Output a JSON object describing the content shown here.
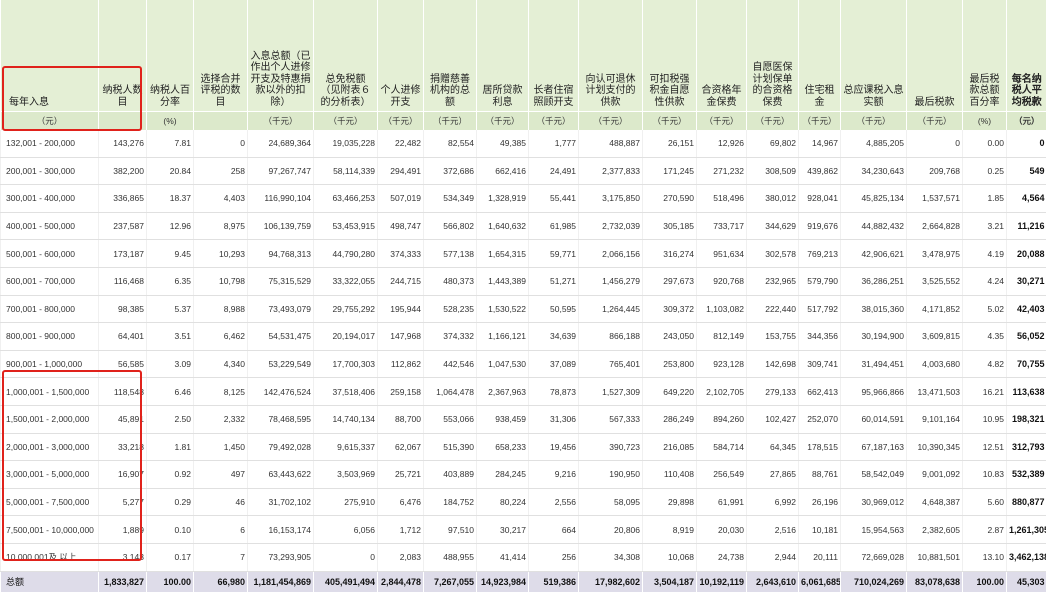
{
  "headers": [
    "每年入息",
    "纳税人数目",
    "纳税人百分率",
    "选择合并评税的数目",
    "入息总额（已作出个人进修开支及特惠捐款以外的扣除）",
    "总免税额（见附表６的分析表）",
    "个人进修开支",
    "捐赠慈善机构的总额",
    "居所贷款利息",
    "长者住宿照顾开支",
    "向认可退休计划支付的供款",
    "可扣税强积金自愿性供款",
    "合资格年金保费",
    "自愿医保计划保单的合资格保费",
    "住宅租金",
    "总应课税入息实额",
    "最后税款",
    "最后税款总额百分率",
    "每名纳税人平均税款"
  ],
  "units": [
    "（元）",
    "",
    "(%)",
    "",
    "（千元）",
    "（千元）",
    "（千元）",
    "（千元）",
    "（千元）",
    "（千元）",
    "（千元）",
    "（千元）",
    "（千元）",
    "（千元）",
    "（千元）",
    "（千元）",
    "（千元）",
    "(%)",
    "（元）"
  ],
  "rows": [
    [
      "132,001 - 200,000",
      "143,276",
      "7.81",
      "0",
      "24,689,364",
      "19,035,228",
      "22,482",
      "82,554",
      "49,385",
      "1,777",
      "488,887",
      "26,151",
      "12,926",
      "69,802",
      "14,967",
      "4,885,205",
      "0",
      "0.00",
      "0"
    ],
    [
      "200,001 - 300,000",
      "382,200",
      "20.84",
      "258",
      "97,267,747",
      "58,114,339",
      "294,491",
      "372,686",
      "662,416",
      "24,491",
      "2,377,833",
      "171,245",
      "271,232",
      "308,509",
      "439,862",
      "34,230,643",
      "209,768",
      "0.25",
      "549"
    ],
    [
      "300,001 - 400,000",
      "336,865",
      "18.37",
      "4,403",
      "116,990,104",
      "63,466,253",
      "507,019",
      "534,349",
      "1,328,919",
      "55,441",
      "3,175,850",
      "270,590",
      "518,496",
      "380,012",
      "928,041",
      "45,825,134",
      "1,537,571",
      "1.85",
      "4,564"
    ],
    [
      "400,001 - 500,000",
      "237,587",
      "12.96",
      "8,975",
      "106,139,759",
      "53,453,915",
      "498,747",
      "566,802",
      "1,640,632",
      "61,985",
      "2,732,039",
      "305,185",
      "733,717",
      "344,629",
      "919,676",
      "44,882,432",
      "2,664,828",
      "3.21",
      "11,216"
    ],
    [
      "500,001 - 600,000",
      "173,187",
      "9.45",
      "10,293",
      "94,768,313",
      "44,790,280",
      "374,333",
      "577,138",
      "1,654,315",
      "59,771",
      "2,066,156",
      "316,274",
      "951,634",
      "302,578",
      "769,213",
      "42,906,621",
      "3,478,975",
      "4.19",
      "20,088"
    ],
    [
      "600,001 - 700,000",
      "116,468",
      "6.35",
      "10,798",
      "75,315,529",
      "33,322,055",
      "244,715",
      "480,373",
      "1,443,389",
      "51,271",
      "1,456,279",
      "297,673",
      "920,768",
      "232,965",
      "579,790",
      "36,286,251",
      "3,525,552",
      "4.24",
      "30,271"
    ],
    [
      "700,001 - 800,000",
      "98,385",
      "5.37",
      "8,988",
      "73,493,079",
      "29,755,292",
      "195,944",
      "528,235",
      "1,530,522",
      "50,595",
      "1,264,445",
      "309,372",
      "1,103,082",
      "222,440",
      "517,792",
      "38,015,360",
      "4,171,852",
      "5.02",
      "42,403"
    ],
    [
      "800,001 - 900,000",
      "64,401",
      "3.51",
      "6,462",
      "54,531,475",
      "20,194,017",
      "147,968",
      "374,332",
      "1,166,121",
      "34,639",
      "866,188",
      "243,050",
      "812,149",
      "153,755",
      "344,356",
      "30,194,900",
      "3,609,815",
      "4.35",
      "56,052"
    ],
    [
      "900,001 - 1,000,000",
      "56,585",
      "3.09",
      "4,340",
      "53,229,549",
      "17,700,303",
      "112,862",
      "442,546",
      "1,047,530",
      "37,089",
      "765,401",
      "253,800",
      "923,128",
      "142,698",
      "309,741",
      "31,494,451",
      "4,003,680",
      "4.82",
      "70,755"
    ],
    [
      "1,000,001 - 1,500,000",
      "118,548",
      "6.46",
      "8,125",
      "142,476,524",
      "37,518,406",
      "259,158",
      "1,064,478",
      "2,367,963",
      "78,873",
      "1,527,309",
      "649,220",
      "2,102,705",
      "279,133",
      "662,413",
      "95,966,866",
      "13,471,503",
      "16.21",
      "113,638"
    ],
    [
      "1,500,001 - 2,000,000",
      "45,891",
      "2.50",
      "2,332",
      "78,468,595",
      "14,740,134",
      "88,700",
      "553,066",
      "938,459",
      "31,306",
      "567,333",
      "286,249",
      "894,260",
      "102,427",
      "252,070",
      "60,014,591",
      "9,101,164",
      "10.95",
      "198,321"
    ],
    [
      "2,000,001 - 3,000,000",
      "33,218",
      "1.81",
      "1,450",
      "79,492,028",
      "9,615,337",
      "62,067",
      "515,390",
      "658,233",
      "19,456",
      "390,723",
      "216,085",
      "584,714",
      "64,345",
      "178,515",
      "67,187,163",
      "10,390,345",
      "12.51",
      "312,793"
    ],
    [
      "3,000,001 - 5,000,000",
      "16,907",
      "0.92",
      "497",
      "63,443,622",
      "3,503,969",
      "25,721",
      "403,889",
      "284,245",
      "9,216",
      "190,950",
      "110,408",
      "256,549",
      "27,865",
      "88,761",
      "58,542,049",
      "9,001,092",
      "10.83",
      "532,389"
    ],
    [
      "5,000,001 - 7,500,000",
      "5,277",
      "0.29",
      "46",
      "31,702,102",
      "275,910",
      "6,476",
      "184,752",
      "80,224",
      "2,556",
      "58,095",
      "29,898",
      "61,991",
      "6,992",
      "26,196",
      "30,969,012",
      "4,648,387",
      "5.60",
      "880,877"
    ],
    [
      "7,500,001 - 10,000,000",
      "1,889",
      "0.10",
      "6",
      "16,153,174",
      "6,056",
      "1,712",
      "97,510",
      "30,217",
      "664",
      "20,806",
      "8,919",
      "20,030",
      "2,516",
      "10,181",
      "15,954,563",
      "2,382,605",
      "2.87",
      "1,261,305"
    ],
    [
      "10,000,001及 以上",
      "3,143",
      "0.17",
      "7",
      "73,293,905",
      "0",
      "2,083",
      "488,955",
      "41,414",
      "256",
      "34,308",
      "10,068",
      "24,738",
      "2,944",
      "20,111",
      "72,669,028",
      "10,881,501",
      "13.10",
      "3,462,138"
    ]
  ],
  "total": [
    "总额",
    "1,833,827",
    "100.00",
    "66,980",
    "1,181,454,869",
    "405,491,494",
    "2,844,478",
    "7,267,055",
    "14,923,984",
    "519,386",
    "17,982,602",
    "3,504,187",
    "10,192,119",
    "2,643,610",
    "6,061,685",
    "710,024,269",
    "83,078,638",
    "100.00",
    "45,303"
  ],
  "highlight_color": "#e0221b",
  "header_bg": "#e4efd5",
  "total_bg": "#dedce9"
}
